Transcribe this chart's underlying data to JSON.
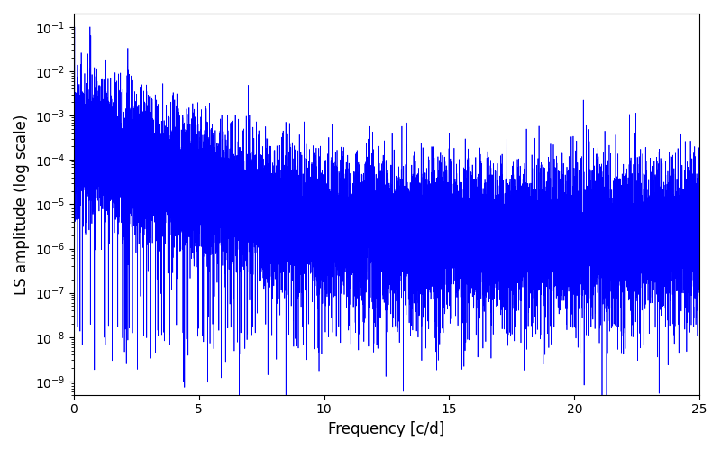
{
  "title": "",
  "xlabel": "Frequency [c/d]",
  "ylabel": "LS amplitude (log scale)",
  "xlim": [
    0,
    25
  ],
  "ylim": [
    5e-10,
    0.2
  ],
  "line_color": "#0000ff",
  "background_color": "#ffffff",
  "figsize": [
    8.0,
    5.0
  ],
  "dpi": 100,
  "n_points": 15000,
  "freq_max": 25.0,
  "seed": 12345
}
